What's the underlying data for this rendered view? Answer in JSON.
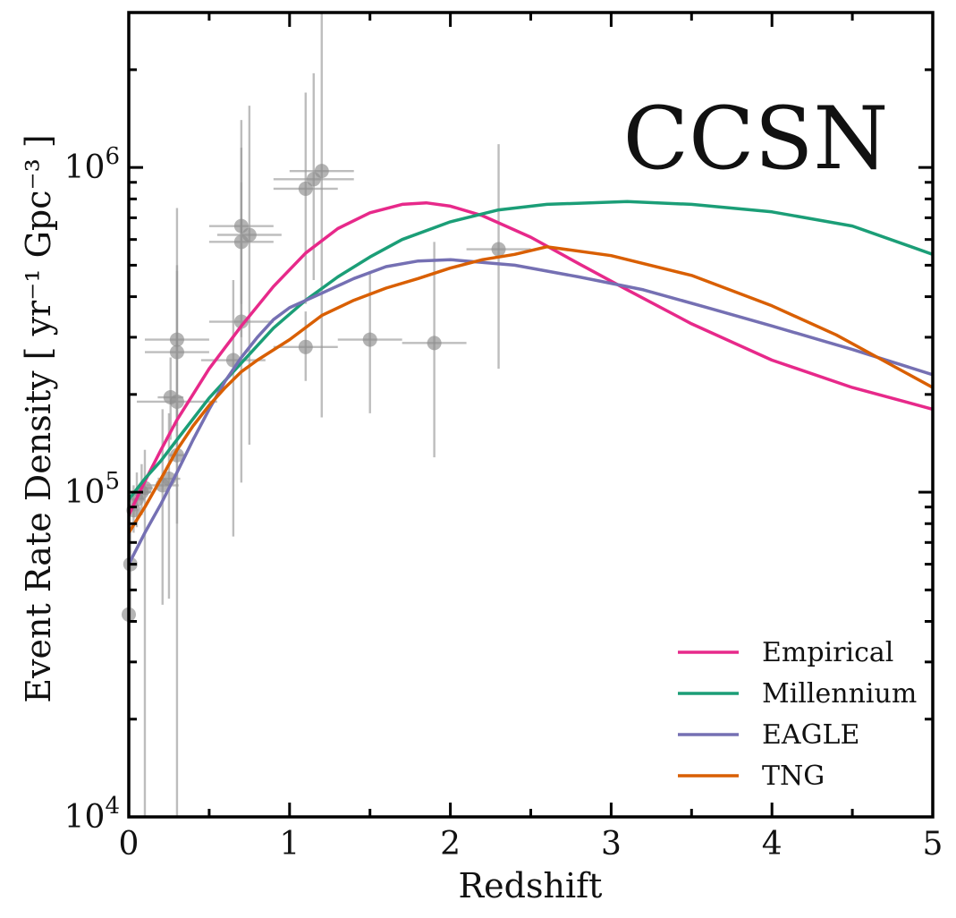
{
  "chart_data": {
    "type": "line",
    "annotation": "CCSN",
    "xlabel": "Redshift",
    "ylabel": "Event Rate Density [ yr⁻¹ Gpc⁻³ ]",
    "xlim": [
      0,
      5
    ],
    "ylim": [
      10000,
      3000000
    ],
    "yscale": "log",
    "xticks": [
      0,
      1,
      2,
      3,
      4,
      5
    ],
    "xtick_labels": [
      "0",
      "1",
      "2",
      "3",
      "4",
      "5"
    ],
    "yticks": [
      10000,
      100000,
      1000000
    ],
    "ytick_labels": [
      {
        "base": "10",
        "exp": "4"
      },
      {
        "base": "10",
        "exp": "5"
      },
      {
        "base": "10",
        "exp": "6"
      }
    ],
    "grid": false,
    "legend_position": "bottom-right",
    "series": [
      {
        "name": "Empirical",
        "color": "#e7298a",
        "x": [
          0,
          0.1,
          0.2,
          0.3,
          0.5,
          0.7,
          0.9,
          1.1,
          1.3,
          1.5,
          1.7,
          1.85,
          2.0,
          2.2,
          2.5,
          2.8,
          3.1,
          3.5,
          4.0,
          4.5,
          5.0
        ],
        "y": [
          85000,
          108000,
          135000,
          167000,
          240000,
          325000,
          430000,
          545000,
          648000,
          725000,
          770000,
          778000,
          760000,
          710000,
          610000,
          505000,
          420000,
          330000,
          255000,
          210000,
          180000
        ]
      },
      {
        "name": "Millennium",
        "color": "#1b9e77",
        "x": [
          0,
          0.1,
          0.2,
          0.3,
          0.5,
          0.7,
          0.9,
          1.1,
          1.3,
          1.5,
          1.7,
          2.0,
          2.3,
          2.6,
          3.1,
          3.5,
          4.0,
          4.5,
          5.0
        ],
        "y": [
          95000,
          110000,
          125000,
          145000,
          195000,
          250000,
          320000,
          390000,
          460000,
          530000,
          600000,
          680000,
          740000,
          770000,
          785000,
          770000,
          730000,
          660000,
          540000
        ]
      },
      {
        "name": "EAGLE",
        "color": "#7570b3",
        "x": [
          0,
          0.1,
          0.2,
          0.3,
          0.4,
          0.5,
          0.6,
          0.7,
          0.8,
          0.9,
          1.0,
          1.2,
          1.4,
          1.6,
          1.8,
          2.0,
          2.4,
          2.8,
          3.2,
          3.6,
          4.0,
          4.5,
          5.0
        ],
        "y": [
          60000,
          75000,
          92000,
          115000,
          145000,
          180000,
          220000,
          260000,
          300000,
          340000,
          370000,
          410000,
          455000,
          495000,
          515000,
          520000,
          500000,
          460000,
          420000,
          370000,
          325000,
          275000,
          230000
        ]
      },
      {
        "name": "TNG",
        "color": "#d95f02",
        "x": [
          0,
          0.1,
          0.2,
          0.3,
          0.4,
          0.5,
          0.6,
          0.7,
          0.8,
          1.0,
          1.2,
          1.4,
          1.6,
          1.8,
          2.0,
          2.2,
          2.4,
          2.6,
          3.0,
          3.5,
          4.0,
          4.4,
          5.0
        ],
        "y": [
          75000,
          90000,
          110000,
          135000,
          160000,
          185000,
          210000,
          235000,
          255000,
          295000,
          350000,
          390000,
          425000,
          455000,
          490000,
          520000,
          540000,
          570000,
          535000,
          465000,
          375000,
          305000,
          210000
        ]
      }
    ],
    "observations": [
      {
        "x": 0.0,
        "y": 42000,
        "xerr": [
          0,
          0
        ],
        "ylo": 22000,
        "yhi": 68000
      },
      {
        "x": 0.01,
        "y": 60000,
        "xerr": [
          0.01,
          0.01
        ],
        "ylo": 40000,
        "yhi": 80000
      },
      {
        "x": 0.03,
        "y": 88000,
        "xerr": [
          0.03,
          0.03
        ],
        "ylo": 75000,
        "yhi": 105000
      },
      {
        "x": 0.05,
        "y": 95000,
        "xerr": [
          0.05,
          0.05
        ],
        "ylo": 78000,
        "yhi": 115000
      },
      {
        "x": 0.08,
        "y": 100000,
        "xerr": [
          0.06,
          0.06
        ],
        "ylo": 85000,
        "yhi": 122000
      },
      {
        "x": 0.1,
        "y": 103000,
        "xerr": [
          0.05,
          0.05
        ],
        "ylo": 10000,
        "yhi": 135000
      },
      {
        "x": 0.21,
        "y": 105000,
        "xerr": [
          0.1,
          0.1
        ],
        "ylo": 45000,
        "yhi": 180000
      },
      {
        "x": 0.25,
        "y": 110000,
        "xerr": [
          0.07,
          0.07
        ],
        "ylo": 47000,
        "yhi": 175000
      },
      {
        "x": 0.26,
        "y": 196000,
        "xerr": [
          0.08,
          0.08
        ],
        "ylo": 145000,
        "yhi": 260000
      },
      {
        "x": 0.3,
        "y": 190000,
        "xerr": [
          0.25,
          0.25
        ],
        "ylo": 10000,
        "yhi": 750000
      },
      {
        "x": 0.3,
        "y": 130000,
        "xerr": [
          0.05,
          0.05
        ],
        "ylo": 80000,
        "yhi": 200000
      },
      {
        "x": 0.3,
        "y": 270000,
        "xerr": [
          0.2,
          0.2
        ],
        "ylo": 160000,
        "yhi": 480000
      },
      {
        "x": 0.3,
        "y": 295000,
        "xerr": [
          0.2,
          0.2
        ],
        "ylo": 170000,
        "yhi": 500000
      },
      {
        "x": 0.65,
        "y": 255000,
        "xerr": [
          0.2,
          0.2
        ],
        "ylo": 73000,
        "yhi": 450000
      },
      {
        "x": 0.7,
        "y": 335000,
        "xerr": [
          0.2,
          0.2
        ],
        "ylo": 107000,
        "yhi": 900000
      },
      {
        "x": 0.7,
        "y": 590000,
        "xerr": [
          0.2,
          0.2
        ],
        "ylo": 300000,
        "yhi": 1150000
      },
      {
        "x": 0.7,
        "y": 660000,
        "xerr": [
          0.2,
          0.2
        ],
        "ylo": 380000,
        "yhi": 1400000
      },
      {
        "x": 0.75,
        "y": 620000,
        "xerr": [
          0.2,
          0.2
        ],
        "ylo": 140000,
        "yhi": 1550000
      },
      {
        "x": 1.1,
        "y": 280000,
        "xerr": [
          0.2,
          0.2
        ],
        "ylo": 220000,
        "yhi": 360000
      },
      {
        "x": 1.1,
        "y": 860000,
        "xerr": [
          0.2,
          0.2
        ],
        "ylo": 380000,
        "yhi": 1700000
      },
      {
        "x": 1.15,
        "y": 920000,
        "xerr": [
          0.25,
          0.25
        ],
        "ylo": 450000,
        "yhi": 1950000
      },
      {
        "x": 1.2,
        "y": 975000,
        "xerr": [
          0.2,
          0.2
        ],
        "ylo": 170000,
        "yhi": 3000000
      },
      {
        "x": 1.5,
        "y": 295000,
        "xerr": [
          0.2,
          0.2
        ],
        "ylo": 175000,
        "yhi": 480000
      },
      {
        "x": 1.9,
        "y": 288000,
        "xerr": [
          0.2,
          0.2
        ],
        "ylo": 128000,
        "yhi": 590000
      },
      {
        "x": 2.3,
        "y": 560000,
        "xerr": [
          0.2,
          0.2
        ],
        "ylo": 240000,
        "yhi": 1180000
      }
    ]
  }
}
